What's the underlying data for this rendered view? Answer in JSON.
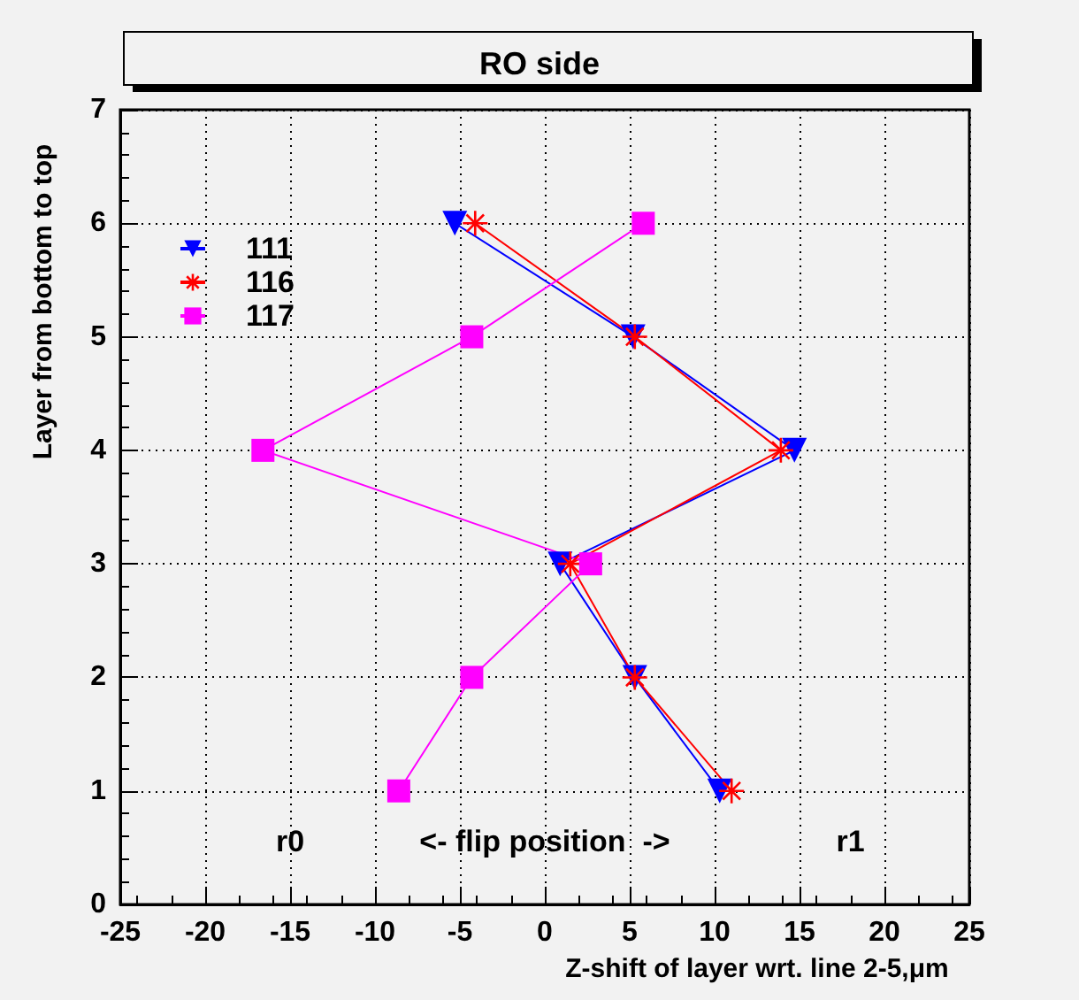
{
  "chart_data": {
    "type": "line",
    "title": "RO side",
    "xlabel": "Z-shift of layer wrt. line 2-5,μm",
    "ylabel": "Layer from bottom to top",
    "xlim": [
      -25,
      25
    ],
    "xticks": [
      -25,
      -20,
      -15,
      -10,
      -5,
      0,
      5,
      10,
      15,
      20,
      25
    ],
    "ylim": [
      0,
      7
    ],
    "yticks": [
      0,
      1,
      2,
      3,
      4,
      5,
      6,
      7
    ],
    "grid": true,
    "legend": "top left",
    "annotations": [
      "r0",
      "<- flip position  ->",
      "r1"
    ],
    "series": [
      {
        "name": "111",
        "color": "#0000ff",
        "marker": "triangle",
        "x": [
          -5.3,
          5.2,
          14.7,
          0.9,
          5.3,
          10.3
        ],
        "values": [
          6,
          5,
          4,
          3,
          2,
          1
        ]
      },
      {
        "name": "116",
        "color": "#ff0000",
        "marker": "cross",
        "x": [
          -4.1,
          5.3,
          13.9,
          1.5,
          5.3,
          11.0
        ],
        "values": [
          6,
          5,
          4,
          3,
          2,
          1
        ]
      },
      {
        "name": "117",
        "color": "#ff00ff",
        "marker": "square",
        "x": [
          5.8,
          -4.3,
          -16.6,
          2.7,
          -4.3,
          -8.6
        ],
        "values": [
          6,
          5,
          4,
          3,
          2,
          1
        ]
      }
    ]
  }
}
